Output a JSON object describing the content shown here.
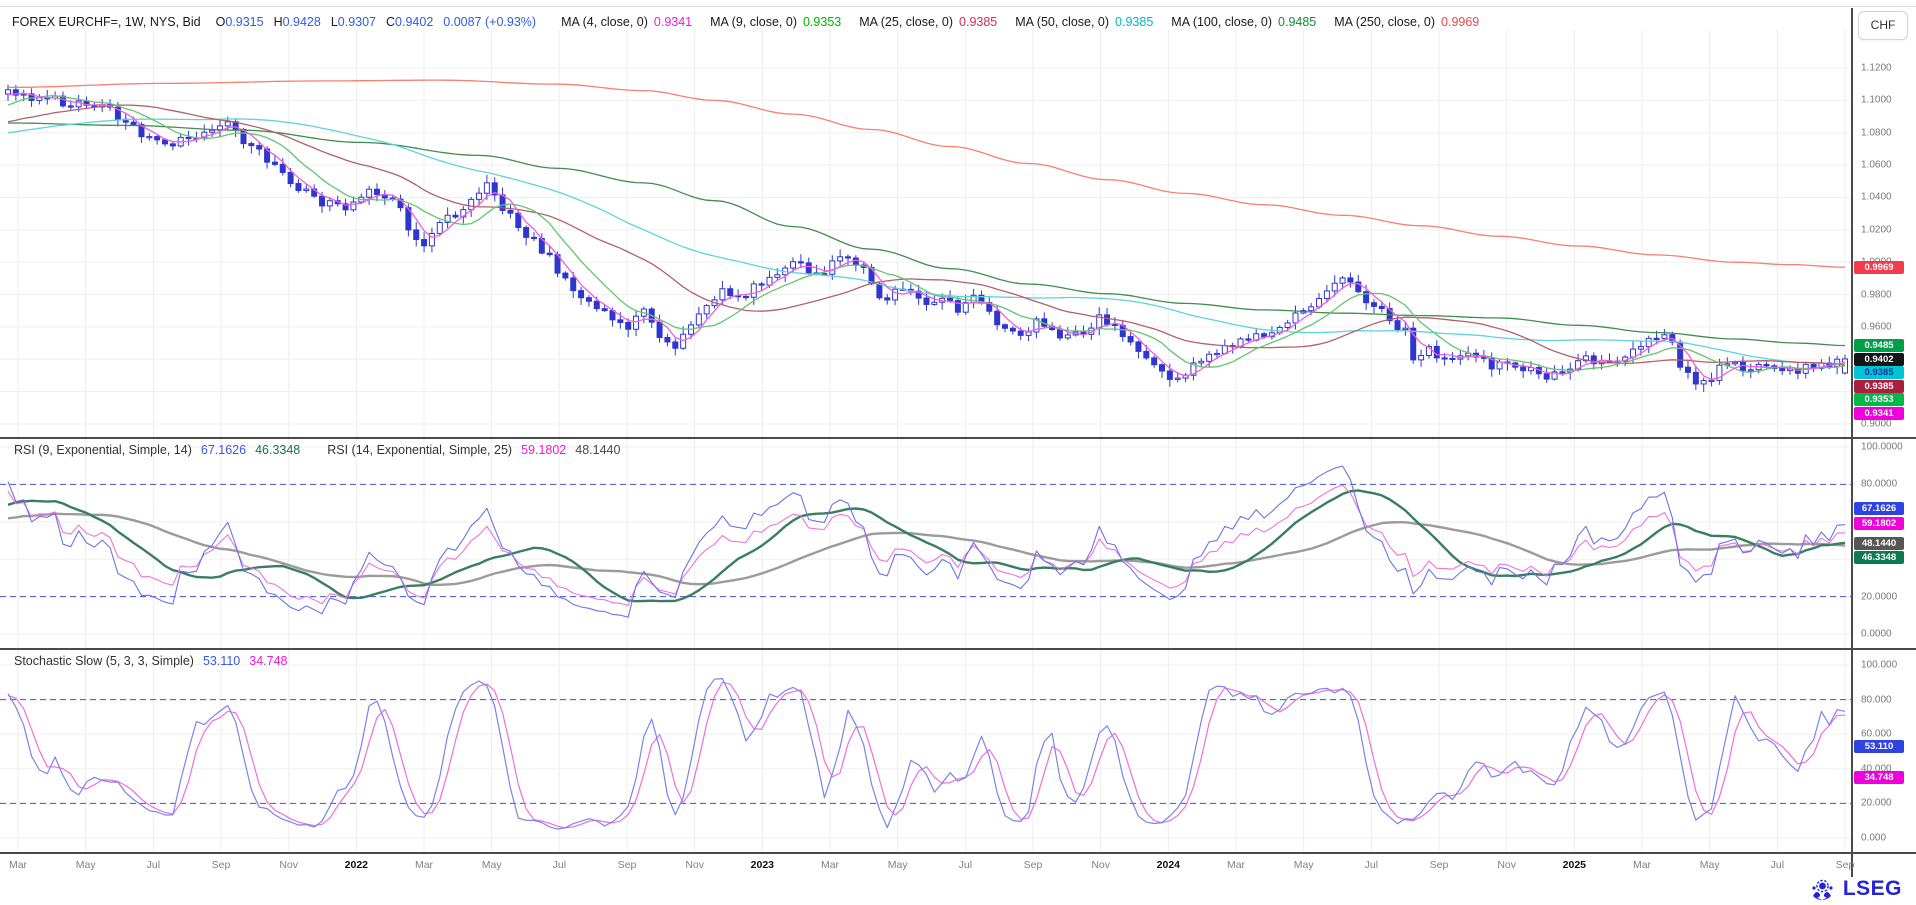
{
  "header": {
    "symbol": "FOREX EURCHF=, 1W, NYS, Bid",
    "value_color": "#2b5ce6",
    "quote": [
      {
        "k": "O",
        "v": "0.9315"
      },
      {
        "k": "H",
        "v": "0.9428"
      },
      {
        "k": "L",
        "v": "0.9307"
      },
      {
        "k": "C",
        "v": "0.9402"
      },
      {
        "k": "",
        "v": "0.0087 (+0.93%)"
      }
    ],
    "currency": "CHF"
  },
  "footer": {
    "brand": "LSEG",
    "color": "#2423d6"
  },
  "main_panel": {
    "ticks": [
      "1.1200",
      "1.1000",
      "1.0800",
      "1.0600",
      "1.0400",
      "1.0200",
      "1.0000",
      "0.9800",
      "0.9600",
      "0.9400",
      "0.9200",
      "0.9000"
    ],
    "badges": [
      {
        "text": "0.9969",
        "bg": "#f23b4c",
        "fg": "#ffffff"
      },
      {
        "text": "0.9485",
        "bg": "#009e49",
        "fg": "#ffffff"
      },
      {
        "text": "0.9402",
        "bg": "#151515",
        "fg": "#ffffff"
      },
      {
        "text": "0.9385",
        "bg": "#00c5d8",
        "fg": "#16309c"
      },
      {
        "text": "0.9385",
        "bg": "#ad1e3e",
        "fg": "#ffffff"
      },
      {
        "text": "0.9353",
        "bg": "#00b84a",
        "fg": "#ffffff"
      },
      {
        "text": "0.9341",
        "bg": "#ef00dd",
        "fg": "#ffffff"
      }
    ]
  },
  "rsi_panel": {
    "title_parts": [
      {
        "text": "RSI (9, Exponential, Simple, 14)",
        "color": "#333333"
      },
      {
        "text": "67.1626",
        "color": "#3b55e6"
      },
      {
        "text": "46.3348",
        "color": "#14754d"
      },
      {
        "text": "RSI (14, Exponential, Simple, 25)",
        "color": "#333333",
        "gap": true
      },
      {
        "text": "59.1802",
        "color": "#ef19d8"
      },
      {
        "text": "48.1440",
        "color": "#4a4a4a"
      }
    ],
    "ticks": [
      "100.0000",
      "80.0000",
      "60.0000",
      "40.0000",
      "20.0000",
      "0.0000"
    ],
    "levels": [
      80,
      20
    ],
    "badges": [
      {
        "text": "67.1626",
        "value": 67.1626,
        "bg": "#2f43e0",
        "fg": "#ffffff"
      },
      {
        "text": "59.1802",
        "value": 59.1802,
        "bg": "#ef00dd",
        "fg": "#ffffff"
      },
      {
        "text": "48.1440",
        "value": 48.144,
        "bg": "#565656",
        "fg": "#ffffff"
      },
      {
        "text": "46.3348",
        "value": 46.3348,
        "bg": "#0e7a4e",
        "fg": "#ffffff"
      }
    ]
  },
  "stoch_panel": {
    "title_parts": [
      {
        "text": "Stochastic Slow (5, 3, 3, Simple)",
        "color": "#333333"
      },
      {
        "text": "53.110",
        "color": "#3b55e6"
      },
      {
        "text": "34.748",
        "color": "#ef19d8"
      }
    ],
    "ticks": [
      "100.000",
      "80.000",
      "60.000",
      "40.000",
      "20.000",
      "0.000"
    ],
    "levels": [
      80,
      20
    ],
    "badges": [
      {
        "text": "53.110",
        "value": 53.11,
        "bg": "#2f43e0",
        "fg": "#ffffff"
      },
      {
        "text": "34.748",
        "value": 34.748,
        "bg": "#ef00dd",
        "fg": "#ffffff"
      }
    ]
  },
  "xaxis": {
    "labels": [
      {
        "t": "Mar"
      },
      {
        "t": "May"
      },
      {
        "t": "Jul"
      },
      {
        "t": "Sep"
      },
      {
        "t": "Nov"
      },
      {
        "t": "2022",
        "year": true
      },
      {
        "t": "Mar"
      },
      {
        "t": "May"
      },
      {
        "t": "Jul"
      },
      {
        "t": "Sep"
      },
      {
        "t": "Nov"
      },
      {
        "t": "2023",
        "year": true
      },
      {
        "t": "Mar"
      },
      {
        "t": "May"
      },
      {
        "t": "Jul"
      },
      {
        "t": "Sep"
      },
      {
        "t": "Nov"
      },
      {
        "t": "2024",
        "year": true
      },
      {
        "t": "Mar"
      },
      {
        "t": "May"
      },
      {
        "t": "Jul"
      },
      {
        "t": "Sep"
      },
      {
        "t": "Nov"
      },
      {
        "t": "2025",
        "year": true
      },
      {
        "t": "Mar"
      },
      {
        "t": "May"
      },
      {
        "t": "Jul"
      },
      {
        "t": "Sep"
      }
    ]
  },
  "chart_data": {
    "type": "candlestick",
    "title": "FOREX EURCHF=, 1W, NYS, Bid",
    "timeframe": "1W",
    "x_range": [
      "Mar 2021",
      "Sep 2025"
    ],
    "y_axis": {
      "min": 0.8918,
      "max": 1.1427,
      "ticks_step": 0.02
    },
    "weeks": 235,
    "last_candle": {
      "o": 0.9315,
      "h": 0.9428,
      "l": 0.9307,
      "c": 0.9402
    },
    "noise": {
      "close": 0.0032,
      "wick": 0.0042
    },
    "candle_color": "#2f36d0",
    "history_anchors": [
      [
        -60,
        1.072
      ],
      [
        -48,
        1.066
      ],
      [
        -36,
        1.075
      ],
      [
        -24,
        1.079
      ],
      [
        -14,
        1.082
      ],
      [
        -8,
        1.088
      ],
      [
        -4,
        1.097
      ],
      [
        -1,
        1.103
      ]
    ],
    "close_anchors": [
      [
        0,
        1.105
      ],
      [
        5,
        1.102
      ],
      [
        9,
        1.097
      ],
      [
        13,
        1.094
      ],
      [
        16,
        1.082
      ],
      [
        18,
        1.075
      ],
      [
        22,
        1.074
      ],
      [
        25,
        1.082
      ],
      [
        28,
        1.086
      ],
      [
        31,
        1.071
      ],
      [
        34,
        1.058
      ],
      [
        37,
        1.044
      ],
      [
        40,
        1.037
      ],
      [
        43,
        1.035
      ],
      [
        46,
        1.046
      ],
      [
        49,
        1.04
      ],
      [
        51,
        1.022
      ],
      [
        53,
        1.01
      ],
      [
        55,
        1.022
      ],
      [
        57,
        1.03
      ],
      [
        59,
        1.04
      ],
      [
        61,
        1.048
      ],
      [
        63,
        1.035
      ],
      [
        65,
        1.02
      ],
      [
        67,
        1.012
      ],
      [
        69,
        1.002
      ],
      [
        71,
        0.99
      ],
      [
        73,
        0.976
      ],
      [
        75,
        0.972
      ],
      [
        77,
        0.965
      ],
      [
        79,
        0.96
      ],
      [
        81,
        0.968
      ],
      [
        83,
        0.955
      ],
      [
        85,
        0.95
      ],
      [
        87,
        0.96
      ],
      [
        89,
        0.973
      ],
      [
        91,
        0.985
      ],
      [
        93,
        0.978
      ],
      [
        95,
        0.984
      ],
      [
        97,
        0.99
      ],
      [
        99,
        0.995
      ],
      [
        101,
        1.0
      ],
      [
        103,
        0.992
      ],
      [
        105,
        0.998
      ],
      [
        107,
        1.003
      ],
      [
        109,
        0.995
      ],
      [
        111,
        0.976
      ],
      [
        113,
        0.982
      ],
      [
        115,
        0.979
      ],
      [
        117,
        0.974
      ],
      [
        119,
        0.978
      ],
      [
        121,
        0.972
      ],
      [
        123,
        0.977
      ],
      [
        125,
        0.968
      ],
      [
        127,
        0.96
      ],
      [
        129,
        0.956
      ],
      [
        131,
        0.962
      ],
      [
        133,
        0.957
      ],
      [
        135,
        0.952
      ],
      [
        137,
        0.958
      ],
      [
        139,
        0.965
      ],
      [
        141,
        0.96
      ],
      [
        143,
        0.95
      ],
      [
        145,
        0.94
      ],
      [
        147,
        0.93
      ],
      [
        149,
        0.926
      ],
      [
        151,
        0.938
      ],
      [
        154,
        0.946
      ],
      [
        157,
        0.95
      ],
      [
        160,
        0.957
      ],
      [
        163,
        0.964
      ],
      [
        166,
        0.975
      ],
      [
        168,
        0.984
      ],
      [
        170,
        0.99
      ],
      [
        172,
        0.982
      ],
      [
        174,
        0.972
      ],
      [
        176,
        0.966
      ],
      [
        178,
        0.956
      ],
      [
        179,
        0.942
      ],
      [
        181,
        0.946
      ],
      [
        183,
        0.94
      ],
      [
        185,
        0.944
      ],
      [
        187,
        0.94
      ],
      [
        189,
        0.937
      ],
      [
        191,
        0.936
      ],
      [
        193,
        0.933
      ],
      [
        196,
        0.93
      ],
      [
        198,
        0.934
      ],
      [
        200,
        0.938
      ],
      [
        202,
        0.94
      ],
      [
        204,
        0.94
      ],
      [
        206,
        0.944
      ],
      [
        209,
        0.953
      ],
      [
        211,
        0.958
      ],
      [
        213,
        0.938
      ],
      [
        215,
        0.926
      ],
      [
        217,
        0.93
      ],
      [
        218,
        0.935
      ],
      [
        220,
        0.936
      ],
      [
        222,
        0.935
      ],
      [
        224,
        0.933
      ],
      [
        226,
        0.932
      ],
      [
        228,
        0.934
      ],
      [
        230,
        0.936
      ],
      [
        232,
        0.934
      ],
      [
        234,
        0.9402
      ]
    ],
    "moving_averages": [
      {
        "label": "MA (4, close, 0)",
        "value": "0.9341",
        "text_color": "#e81ce0",
        "line_color": "#ef5fe0",
        "mode": "sma",
        "period": 4
      },
      {
        "label": "MA (9, close, 0)",
        "value": "0.9353",
        "text_color": "#00b400",
        "line_color": "#63c56d",
        "mode": "sma",
        "period": 9
      },
      {
        "label": "MA (25, close, 0)",
        "value": "0.9385",
        "text_color": "#d42a50",
        "line_color": "#b2606a",
        "mode": "sma",
        "period": 25
      },
      {
        "label": "MA (50, close, 0)",
        "value": "0.9385",
        "text_color": "#00b7cc",
        "line_color": "#5fd2dc",
        "mode": "sma",
        "period": 50
      },
      {
        "label": "MA (100, close, 0)",
        "value": "0.9485",
        "text_color": "#0b8f2f",
        "line_color": "#3f8d4f",
        "mode": "anchors",
        "anchors": [
          [
            0,
            1.086
          ],
          [
            15,
            1.0845
          ],
          [
            30,
            1.0815
          ],
          [
            45,
            1.074
          ],
          [
            60,
            1.066
          ],
          [
            70,
            1.058
          ],
          [
            81,
            1.049
          ],
          [
            90,
            1.038
          ],
          [
            100,
            1.022
          ],
          [
            110,
            1.008
          ],
          [
            120,
            0.996
          ],
          [
            130,
            0.9865
          ],
          [
            140,
            0.9805
          ],
          [
            150,
            0.9745
          ],
          [
            160,
            0.9705
          ],
          [
            170,
            0.9685
          ],
          [
            180,
            0.967
          ],
          [
            190,
            0.9655
          ],
          [
            200,
            0.961
          ],
          [
            210,
            0.9565
          ],
          [
            220,
            0.9525
          ],
          [
            228,
            0.95
          ],
          [
            234,
            0.9485
          ]
        ]
      },
      {
        "label": "MA (250, close, 0)",
        "value": "0.9969",
        "text_color": "#f0464e",
        "line_color": "#f87f71",
        "mode": "anchors",
        "anchors": [
          [
            0,
            1.108
          ],
          [
            20,
            1.1105
          ],
          [
            40,
            1.112
          ],
          [
            55,
            1.1125
          ],
          [
            70,
            1.11
          ],
          [
            81,
            1.106
          ],
          [
            90,
            1.1
          ],
          [
            100,
            1.0915
          ],
          [
            110,
            1.082
          ],
          [
            120,
            1.0715
          ],
          [
            130,
            1.061
          ],
          [
            140,
            1.051
          ],
          [
            150,
            1.0425
          ],
          [
            160,
            1.0355
          ],
          [
            170,
            1.029
          ],
          [
            180,
            1.0225
          ],
          [
            190,
            1.016
          ],
          [
            200,
            1.01
          ],
          [
            210,
            1.0045
          ],
          [
            220,
            1.0
          ],
          [
            227,
            0.9985
          ],
          [
            234,
            0.9969
          ]
        ]
      }
    ],
    "indicators": {
      "rsi": {
        "period1": 9,
        "smooth1": 14,
        "period2": 14,
        "smooth2": 25,
        "colors": {
          "fast1": "#6b74e0",
          "fast2": "#ef72de",
          "slow1": "#3a7d62",
          "slow2": "#9b9b9b"
        }
      },
      "stochastic": {
        "k": 5,
        "slowing": 3,
        "d": 3,
        "colors": {
          "k": "#7b83e8",
          "d": "#ee6ede"
        }
      },
      "level_line_color": "#4853d6"
    }
  }
}
